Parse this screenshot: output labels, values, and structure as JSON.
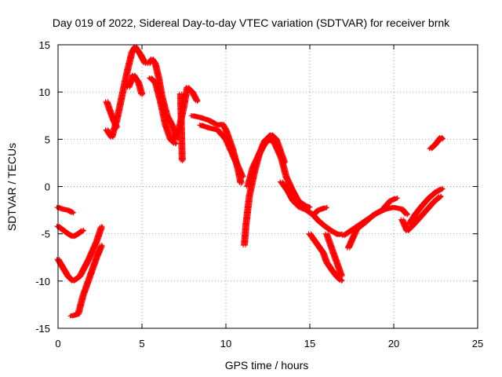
{
  "chart_data": {
    "type": "scatter",
    "title": "Day 019 of 2022, Sidereal Day-to-day VTEC variation (SDTVAR) for receiver brnk",
    "xlabel": "GPS time / hours",
    "ylabel": "SDTVAR / TECUs",
    "xlim": [
      0,
      25
    ],
    "ylim": [
      -15,
      15
    ],
    "xticks": [
      0,
      5,
      10,
      15,
      20,
      25
    ],
    "yticks": [
      -15,
      -10,
      -5,
      0,
      5,
      10,
      15
    ],
    "grid": true,
    "marker": "+",
    "color": "#ff0000",
    "series": [
      {
        "x": [
          0.0,
          0.3,
          0.6,
          0.9
        ],
        "y": [
          -2.2,
          -2.4,
          -2.5,
          -2.8
        ]
      },
      {
        "x": [
          0.0,
          0.3,
          0.6,
          0.9,
          1.2,
          1.5
        ],
        "y": [
          -4.2,
          -4.6,
          -5.0,
          -5.3,
          -5.0,
          -4.6
        ]
      },
      {
        "x": [
          0.0,
          0.3,
          0.6,
          0.9,
          1.3,
          1.8,
          2.3,
          2.6
        ],
        "y": [
          -7.7,
          -8.6,
          -9.5,
          -10.0,
          -9.5,
          -7.8,
          -5.8,
          -4.2
        ]
      },
      {
        "x": [
          0.8,
          1.2,
          1.5,
          1.9,
          2.3,
          2.6
        ],
        "y": [
          -13.7,
          -13.5,
          -11.5,
          -9.5,
          -7.5,
          -6.2
        ]
      },
      {
        "x": [
          2.9,
          3.2,
          3.5,
          3.8,
          4.1,
          4.4,
          4.6,
          4.9,
          5.2
        ],
        "y": [
          6.0,
          5.2,
          7.0,
          9.5,
          12.0,
          14.2,
          14.8,
          14.0,
          13.0
        ]
      },
      {
        "x": [
          2.9,
          3.2,
          3.5
        ],
        "y": [
          9.0,
          7.5,
          6.2
        ]
      },
      {
        "x": [
          4.2,
          4.5,
          4.8,
          5.0
        ],
        "y": [
          10.5,
          11.8,
          11.0,
          9.7
        ]
      },
      {
        "x": [
          5.4,
          5.6,
          5.8,
          6.0,
          6.2,
          6.5,
          6.8,
          7.1
        ],
        "y": [
          13.0,
          13.5,
          13.0,
          11.5,
          9.5,
          7.5,
          6.5,
          5.0
        ]
      },
      {
        "x": [
          5.5,
          5.8,
          6.1,
          6.4,
          6.7,
          7.0
        ],
        "y": [
          11.5,
          11.0,
          9.0,
          6.5,
          5.0,
          4.5
        ]
      },
      {
        "x": [
          6.8,
          7.2,
          7.5,
          7.7,
          8.0,
          8.3
        ],
        "y": [
          4.8,
          6.0,
          8.5,
          10.5,
          10.0,
          9.0
        ]
      },
      {
        "x": [
          7.3,
          7.4
        ],
        "y": [
          9.8,
          2.7
        ]
      },
      {
        "x": [
          8.0,
          8.5,
          9.0,
          9.5,
          9.8,
          10.0,
          10.4,
          10.7,
          10.9
        ],
        "y": [
          7.5,
          7.3,
          7.0,
          6.5,
          6.6,
          6.0,
          4.0,
          2.0,
          0.3
        ]
      },
      {
        "x": [
          8.5,
          9.0,
          9.5,
          10.0,
          10.5,
          11.0
        ],
        "y": [
          6.5,
          6.2,
          6.0,
          5.0,
          3.0,
          1.0
        ]
      },
      {
        "x": [
          11.1,
          11.2,
          11.4,
          11.7,
          12.0,
          12.3,
          12.7,
          13.0,
          13.2,
          13.5
        ],
        "y": [
          -6.2,
          -4.0,
          -1.0,
          1.5,
          3.5,
          4.8,
          5.5,
          5.0,
          4.0,
          2.5
        ]
      },
      {
        "x": [
          11.3,
          11.6,
          12.0,
          12.3,
          12.6,
          12.9,
          13.3,
          13.6,
          14.0,
          14.3,
          14.7,
          15.0
        ],
        "y": [
          0.0,
          2.0,
          3.5,
          4.5,
          5.0,
          4.6,
          3.0,
          1.0,
          -0.5,
          -1.5,
          -2.0,
          -2.2
        ]
      },
      {
        "x": [
          13.3,
          13.7,
          14.0,
          14.4,
          14.8,
          15.2,
          15.5,
          16.0
        ],
        "y": [
          0.5,
          -0.5,
          -1.5,
          -2.2,
          -2.5,
          -3.0,
          -2.5,
          -2.2
        ]
      },
      {
        "x": [
          15.0,
          15.4,
          15.8,
          16.0,
          16.3,
          16.6,
          16.9
        ],
        "y": [
          -5.0,
          -6.0,
          -7.0,
          -8.0,
          -8.8,
          -9.5,
          -10.0
        ]
      },
      {
        "x": [
          15.2,
          15.5,
          15.9,
          16.3,
          16.7,
          16.9
        ],
        "y": [
          -3.0,
          -3.6,
          -4.2,
          -4.7,
          -5.1,
          -5.0
        ]
      },
      {
        "x": [
          16.0,
          16.3,
          16.6,
          16.9
        ],
        "y": [
          -5.0,
          -6.5,
          -8.0,
          -9.5
        ]
      },
      {
        "x": [
          17.0,
          17.5,
          18.0,
          18.5,
          19.0,
          19.5,
          20.0,
          20.5,
          20.8
        ],
        "y": [
          -5.2,
          -4.6,
          -4.0,
          -3.4,
          -2.8,
          -2.4,
          -2.2,
          -2.4,
          -3.0
        ]
      },
      {
        "x": [
          17.3,
          17.8,
          18.3,
          18.8,
          19.3,
          19.8,
          20.2
        ],
        "y": [
          -6.5,
          -4.5,
          -3.8,
          -3.0,
          -2.5,
          -1.5,
          -1.2
        ]
      },
      {
        "x": [
          20.5,
          20.8,
          21.2,
          21.6,
          22.0,
          22.4,
          22.8
        ],
        "y": [
          -3.5,
          -4.7,
          -4.0,
          -3.2,
          -2.4,
          -1.6,
          -1.0
        ]
      },
      {
        "x": [
          20.9,
          21.3,
          21.7,
          22.1,
          22.5,
          22.9
        ],
        "y": [
          -4.0,
          -2.9,
          -2.0,
          -1.2,
          -0.6,
          -0.2
        ]
      },
      {
        "x": [
          22.2,
          22.5,
          22.8,
          22.9
        ],
        "y": [
          4.0,
          4.5,
          5.2,
          5.0
        ]
      }
    ]
  }
}
